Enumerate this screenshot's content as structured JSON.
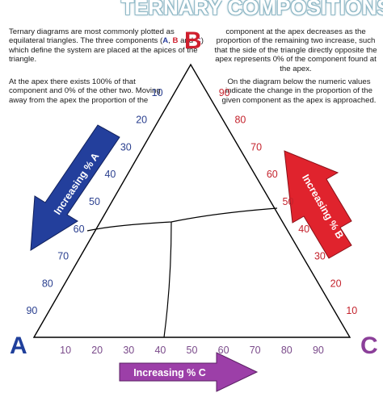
{
  "title": "TERNARY COMPOSITIONS",
  "text": {
    "p1_before_a": "Ternary diagrams are most commonly plotted as equilateral triangles. The three components (",
    "p1_a": "A",
    "p1_sep1": ", ",
    "p1_b": "B",
    "p1_sep2": " and  ",
    "p1_c": "C",
    "p1_after": ") which define the system are placed at the apices of the triangle.",
    "p2": "At the apex there exists 100% of that component and 0% of the other two. Moving away from the apex the proportion of the",
    "p3": "component at the apex decreases as the proportion of the remaining two increase, such that the side of the triangle directly opposite the apex represents 0% of the component found at the apex.",
    "p4": "On the diagram below the numeric values indicate the change in the proportion of the given component as the apex is approached."
  },
  "vertices": {
    "a": "A",
    "b": "B",
    "c": "C"
  },
  "colors": {
    "a": "#1f3f9b",
    "b": "#cf1f2e",
    "c": "#8b3f99",
    "title": "#8fb8c6"
  },
  "ticks": {
    "a": [
      "10",
      "20",
      "30",
      "40",
      "50",
      "60",
      "70",
      "80",
      "90"
    ],
    "b": [
      "90",
      "80",
      "70",
      "60",
      "50",
      "40",
      "30",
      "20",
      "10"
    ],
    "c": [
      "10",
      "20",
      "30",
      "40",
      "50",
      "60",
      "70",
      "80",
      "90"
    ]
  },
  "arrows": {
    "a": "Increasing % A",
    "b": "Increasing % B",
    "c": "Increasing % C"
  }
}
